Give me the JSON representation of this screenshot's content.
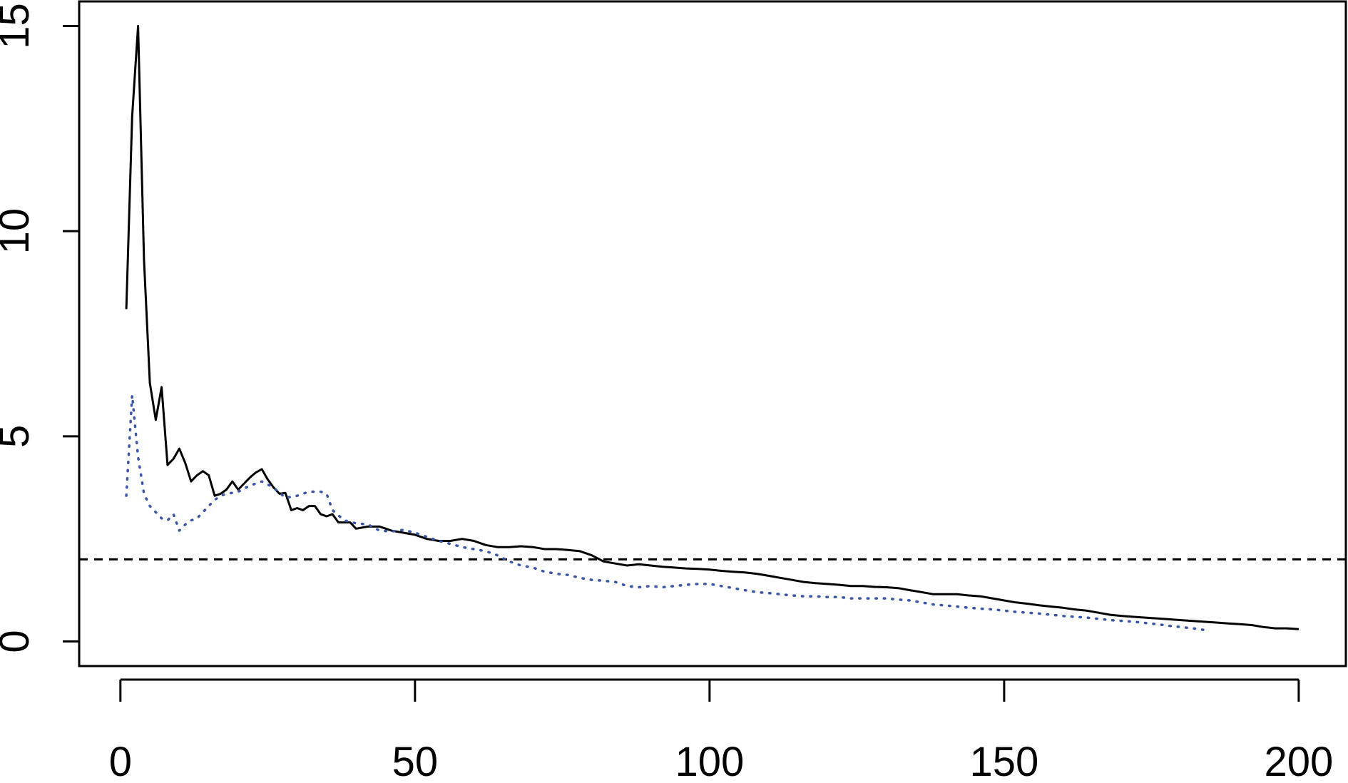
{
  "chart_data": {
    "type": "line",
    "title": "",
    "xlabel": "",
    "ylabel": "",
    "xlim": [
      -7,
      208
    ],
    "ylim": [
      -0.6,
      15.6
    ],
    "x_ticks": [
      0,
      50,
      100,
      150,
      200
    ],
    "x_tick_labels": [
      "0",
      "50",
      "100",
      "150",
      "200"
    ],
    "y_ticks": [
      0,
      5,
      10,
      15
    ],
    "y_tick_labels": [
      "0",
      "5",
      "10",
      "15"
    ],
    "grid": false,
    "legend": "none",
    "reference_line": {
      "y": 2,
      "style": "dashed",
      "color": "#000000"
    },
    "series": [
      {
        "style": "solid",
        "color": "#000000",
        "points": [
          [
            1,
            8.1
          ],
          [
            2,
            12.8
          ],
          [
            3,
            15.0
          ],
          [
            4,
            9.3
          ],
          [
            5,
            6.3
          ],
          [
            6,
            5.4
          ],
          [
            7,
            6.2
          ],
          [
            8,
            4.3
          ],
          [
            9,
            4.45
          ],
          [
            10,
            4.7
          ],
          [
            11,
            4.35
          ],
          [
            12,
            3.9
          ],
          [
            13,
            4.05
          ],
          [
            14,
            4.15
          ],
          [
            15,
            4.05
          ],
          [
            16,
            3.55
          ],
          [
            17,
            3.6
          ],
          [
            18,
            3.7
          ],
          [
            19,
            3.9
          ],
          [
            20,
            3.7
          ],
          [
            21,
            3.85
          ],
          [
            22,
            4.0
          ],
          [
            23,
            4.12
          ],
          [
            24,
            4.2
          ],
          [
            25,
            3.95
          ],
          [
            26,
            3.75
          ],
          [
            27,
            3.6
          ],
          [
            28,
            3.62
          ],
          [
            29,
            3.2
          ],
          [
            30,
            3.25
          ],
          [
            31,
            3.2
          ],
          [
            32,
            3.3
          ],
          [
            33,
            3.3
          ],
          [
            34,
            3.1
          ],
          [
            35,
            3.05
          ],
          [
            36,
            3.1
          ],
          [
            37,
            2.9
          ],
          [
            38,
            2.9
          ],
          [
            39,
            2.9
          ],
          [
            40,
            2.75
          ],
          [
            42,
            2.8
          ],
          [
            44,
            2.8
          ],
          [
            46,
            2.7
          ],
          [
            48,
            2.65
          ],
          [
            50,
            2.6
          ],
          [
            52,
            2.5
          ],
          [
            54,
            2.45
          ],
          [
            56,
            2.45
          ],
          [
            58,
            2.5
          ],
          [
            60,
            2.45
          ],
          [
            62,
            2.35
          ],
          [
            64,
            2.3
          ],
          [
            66,
            2.3
          ],
          [
            68,
            2.32
          ],
          [
            70,
            2.3
          ],
          [
            72,
            2.25
          ],
          [
            74,
            2.25
          ],
          [
            76,
            2.23
          ],
          [
            78,
            2.2
          ],
          [
            80,
            2.1
          ],
          [
            82,
            1.95
          ],
          [
            84,
            1.9
          ],
          [
            86,
            1.85
          ],
          [
            88,
            1.88
          ],
          [
            90,
            1.85
          ],
          [
            92,
            1.82
          ],
          [
            94,
            1.8
          ],
          [
            96,
            1.78
          ],
          [
            98,
            1.77
          ],
          [
            100,
            1.75
          ],
          [
            102,
            1.72
          ],
          [
            104,
            1.7
          ],
          [
            106,
            1.68
          ],
          [
            108,
            1.65
          ],
          [
            110,
            1.6
          ],
          [
            112,
            1.55
          ],
          [
            114,
            1.5
          ],
          [
            116,
            1.45
          ],
          [
            118,
            1.42
          ],
          [
            120,
            1.4
          ],
          [
            122,
            1.38
          ],
          [
            124,
            1.35
          ],
          [
            126,
            1.35
          ],
          [
            128,
            1.33
          ],
          [
            130,
            1.32
          ],
          [
            132,
            1.3
          ],
          [
            134,
            1.25
          ],
          [
            136,
            1.2
          ],
          [
            138,
            1.15
          ],
          [
            140,
            1.15
          ],
          [
            142,
            1.15
          ],
          [
            144,
            1.12
          ],
          [
            146,
            1.1
          ],
          [
            148,
            1.05
          ],
          [
            150,
            1.0
          ],
          [
            152,
            0.95
          ],
          [
            154,
            0.92
          ],
          [
            156,
            0.88
          ],
          [
            158,
            0.85
          ],
          [
            160,
            0.82
          ],
          [
            162,
            0.78
          ],
          [
            164,
            0.75
          ],
          [
            166,
            0.7
          ],
          [
            168,
            0.65
          ],
          [
            170,
            0.62
          ],
          [
            172,
            0.6
          ],
          [
            174,
            0.58
          ],
          [
            176,
            0.56
          ],
          [
            178,
            0.54
          ],
          [
            180,
            0.52
          ],
          [
            182,
            0.5
          ],
          [
            184,
            0.48
          ],
          [
            186,
            0.46
          ],
          [
            188,
            0.44
          ],
          [
            190,
            0.42
          ],
          [
            192,
            0.4
          ],
          [
            194,
            0.35
          ],
          [
            196,
            0.32
          ],
          [
            198,
            0.32
          ],
          [
            200,
            0.3
          ]
        ]
      },
      {
        "style": "dotted",
        "color": "#3B55A8",
        "points": [
          [
            1,
            3.55
          ],
          [
            2,
            6.0
          ],
          [
            3,
            4.5
          ],
          [
            4,
            3.6
          ],
          [
            5,
            3.3
          ],
          [
            6,
            3.15
          ],
          [
            7,
            3.0
          ],
          [
            8,
            2.95
          ],
          [
            9,
            3.1
          ],
          [
            10,
            2.7
          ],
          [
            11,
            2.85
          ],
          [
            12,
            2.95
          ],
          [
            13,
            3.0
          ],
          [
            14,
            3.15
          ],
          [
            15,
            3.3
          ],
          [
            16,
            3.45
          ],
          [
            17,
            3.55
          ],
          [
            18,
            3.6
          ],
          [
            19,
            3.62
          ],
          [
            20,
            3.65
          ],
          [
            22,
            3.8
          ],
          [
            24,
            3.9
          ],
          [
            26,
            3.75
          ],
          [
            28,
            3.5
          ],
          [
            30,
            3.55
          ],
          [
            32,
            3.65
          ],
          [
            34,
            3.65
          ],
          [
            35,
            3.6
          ],
          [
            36,
            3.2
          ],
          [
            38,
            2.95
          ],
          [
            40,
            2.88
          ],
          [
            42,
            2.85
          ],
          [
            44,
            2.7
          ],
          [
            46,
            2.68
          ],
          [
            48,
            2.72
          ],
          [
            50,
            2.65
          ],
          [
            52,
            2.55
          ],
          [
            54,
            2.45
          ],
          [
            56,
            2.38
          ],
          [
            58,
            2.3
          ],
          [
            60,
            2.25
          ],
          [
            62,
            2.2
          ],
          [
            64,
            2.1
          ],
          [
            66,
            1.95
          ],
          [
            68,
            1.85
          ],
          [
            70,
            1.8
          ],
          [
            72,
            1.7
          ],
          [
            74,
            1.65
          ],
          [
            76,
            1.62
          ],
          [
            78,
            1.55
          ],
          [
            80,
            1.5
          ],
          [
            82,
            1.48
          ],
          [
            84,
            1.45
          ],
          [
            86,
            1.35
          ],
          [
            88,
            1.32
          ],
          [
            90,
            1.35
          ],
          [
            92,
            1.32
          ],
          [
            94,
            1.35
          ],
          [
            96,
            1.38
          ],
          [
            98,
            1.4
          ],
          [
            100,
            1.4
          ],
          [
            102,
            1.35
          ],
          [
            104,
            1.3
          ],
          [
            106,
            1.25
          ],
          [
            108,
            1.2
          ],
          [
            110,
            1.18
          ],
          [
            112,
            1.15
          ],
          [
            114,
            1.12
          ],
          [
            116,
            1.1
          ],
          [
            118,
            1.1
          ],
          [
            120,
            1.08
          ],
          [
            122,
            1.08
          ],
          [
            124,
            1.05
          ],
          [
            126,
            1.05
          ],
          [
            128,
            1.05
          ],
          [
            130,
            1.05
          ],
          [
            132,
            1.02
          ],
          [
            134,
            1.0
          ],
          [
            136,
            0.95
          ],
          [
            138,
            0.9
          ],
          [
            140,
            0.88
          ],
          [
            142,
            0.85
          ],
          [
            144,
            0.82
          ],
          [
            146,
            0.8
          ],
          [
            148,
            0.78
          ],
          [
            150,
            0.75
          ],
          [
            152,
            0.72
          ],
          [
            154,
            0.7
          ],
          [
            156,
            0.68
          ],
          [
            158,
            0.65
          ],
          [
            160,
            0.62
          ],
          [
            162,
            0.6
          ],
          [
            164,
            0.58
          ],
          [
            166,
            0.55
          ],
          [
            168,
            0.52
          ],
          [
            170,
            0.5
          ],
          [
            172,
            0.48
          ],
          [
            174,
            0.45
          ],
          [
            176,
            0.42
          ],
          [
            178,
            0.38
          ],
          [
            180,
            0.35
          ],
          [
            182,
            0.32
          ],
          [
            184,
            0.28
          ]
        ]
      }
    ]
  }
}
